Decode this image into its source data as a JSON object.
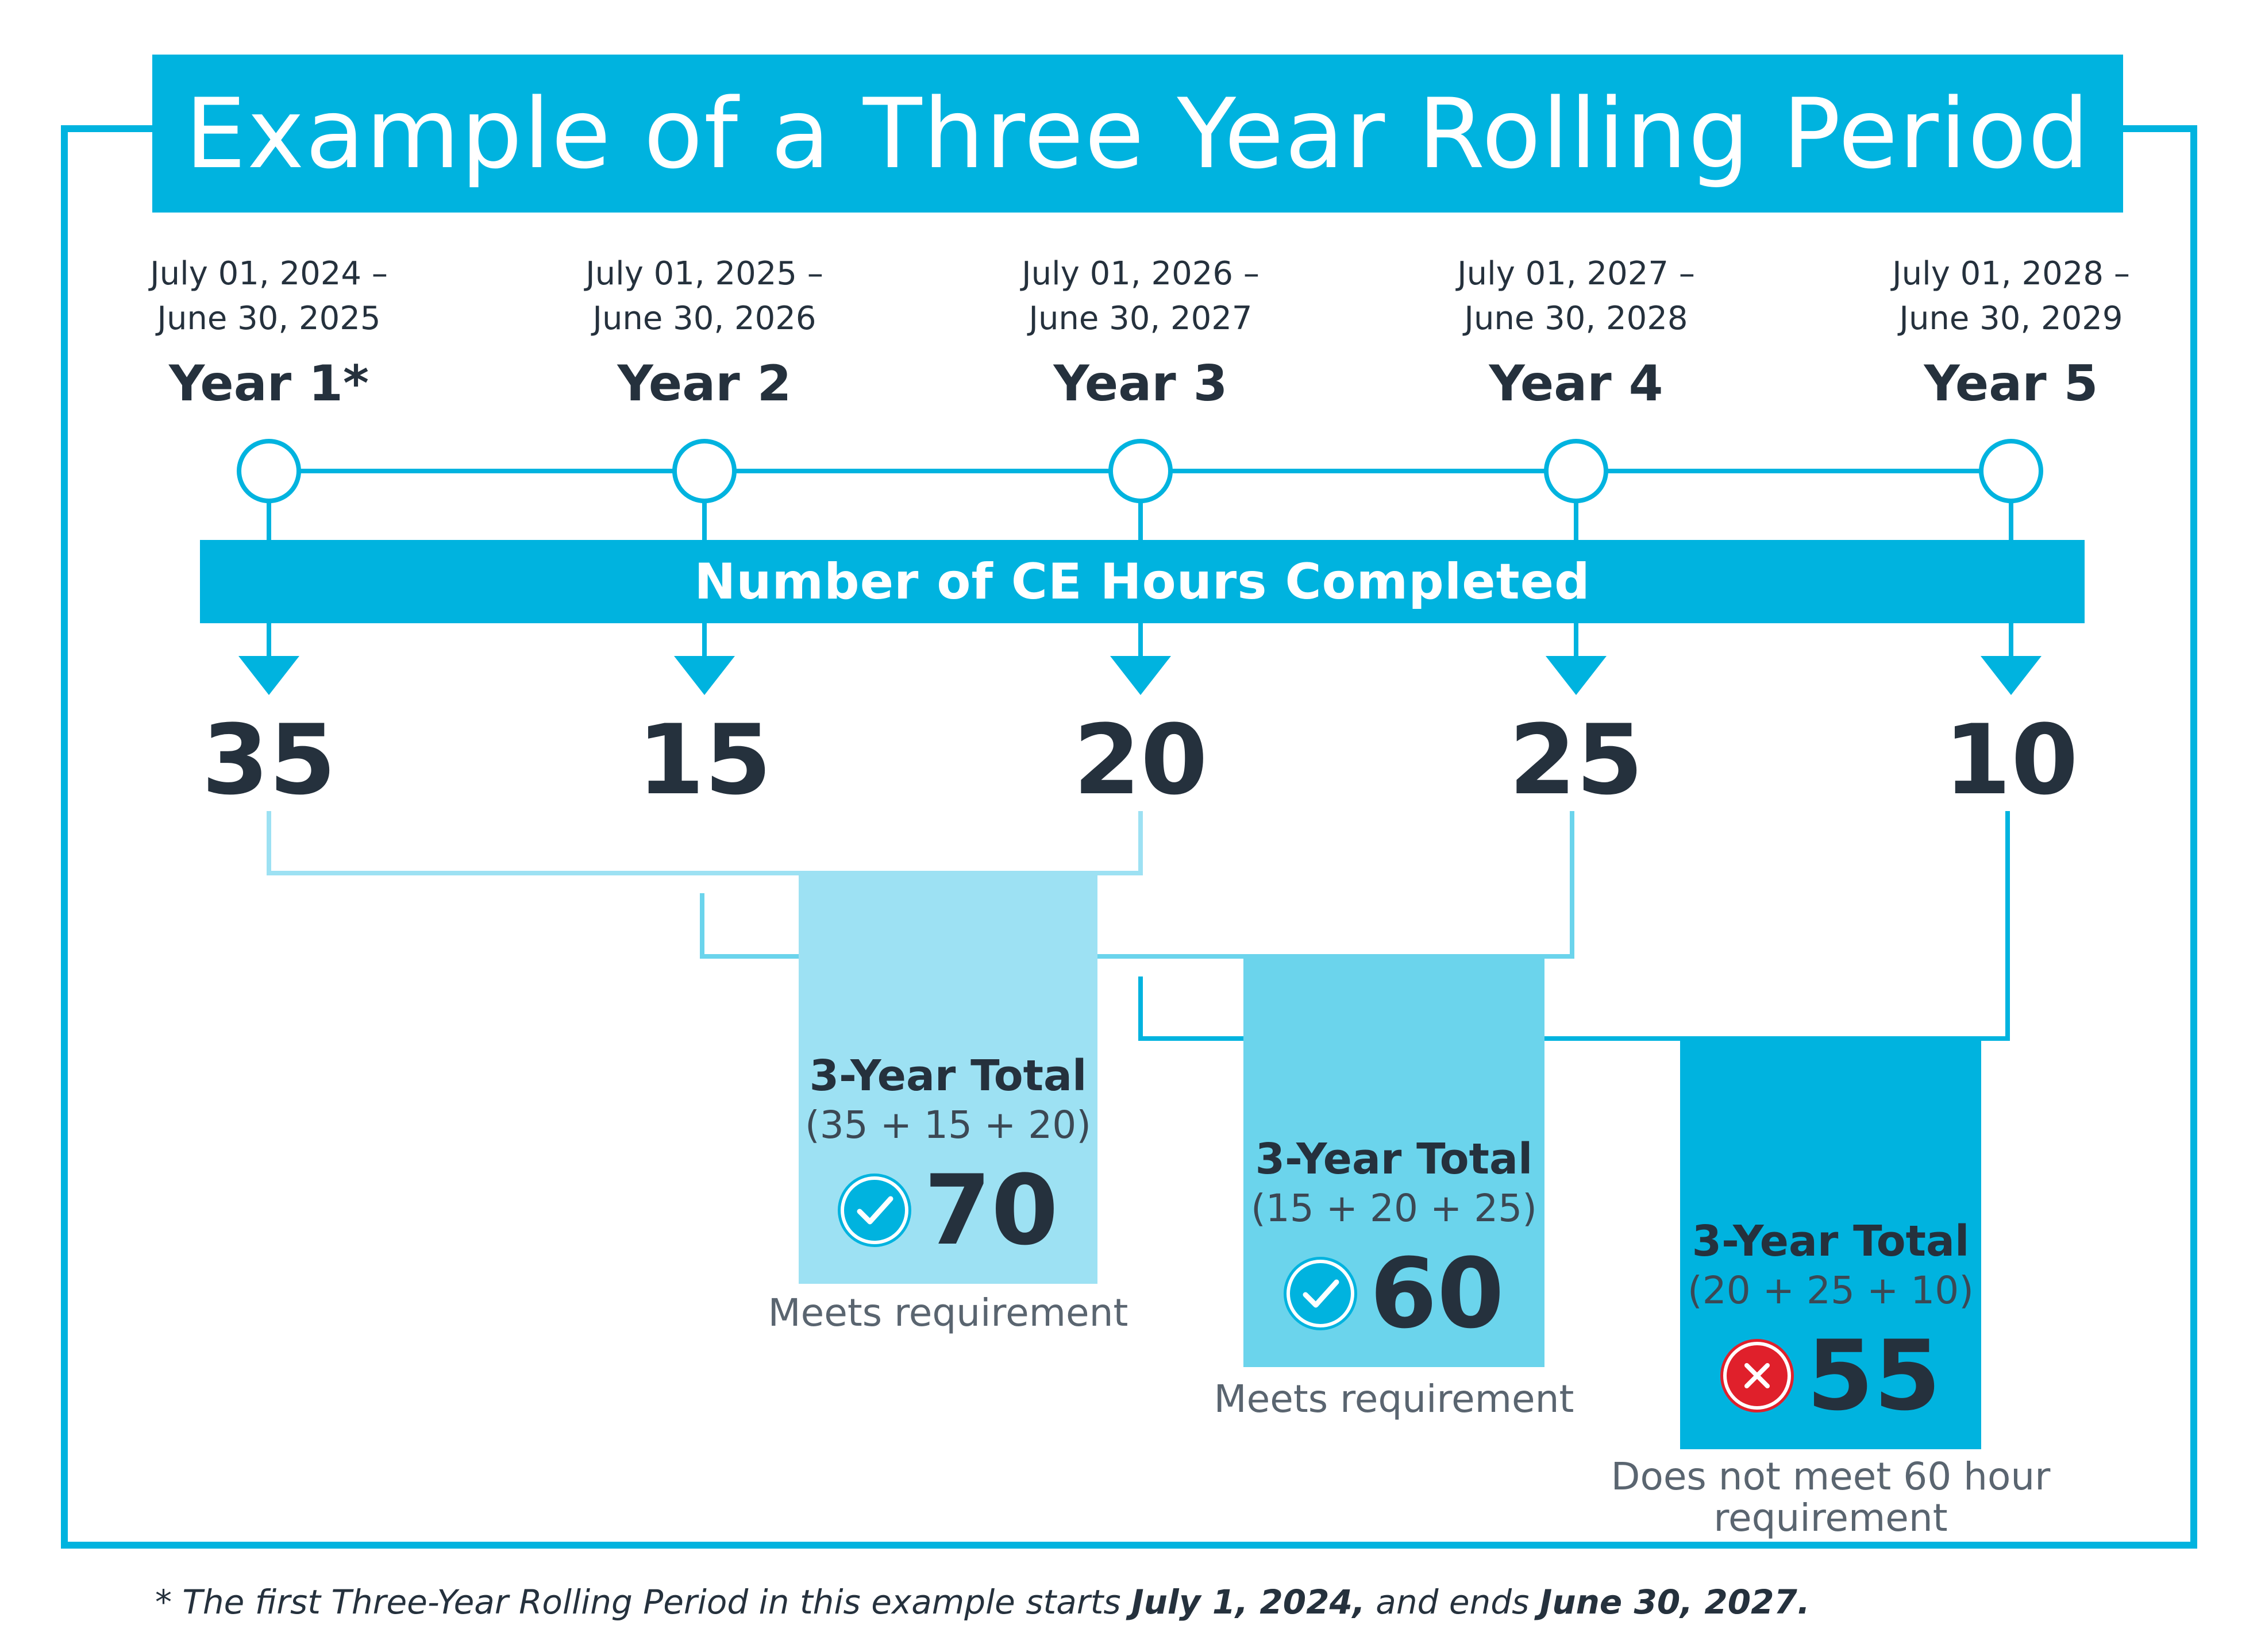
{
  "title": "Example of a Three Year Rolling Period",
  "years": [
    {
      "range_start": "July 01, 2024 –",
      "range_end": "June 30, 2025",
      "label": "Year 1*",
      "hours": "35"
    },
    {
      "range_start": "July 01, 2025 –",
      "range_end": "June 30, 2026",
      "label": "Year 2",
      "hours": "15"
    },
    {
      "range_start": "July 01, 2026 –",
      "range_end": "June 30, 2027",
      "label": "Year 3",
      "hours": "20"
    },
    {
      "range_start": "July 01, 2027 –",
      "range_end": "June 30, 2028",
      "label": "Year 4",
      "hours": "25"
    },
    {
      "range_start": "July 01, 2028 –",
      "range_end": "June 30, 2029",
      "label": "Year 5",
      "hours": "10"
    }
  ],
  "ce_bar_label": "Number of CE Hours Completed",
  "totals": [
    {
      "title": "3-Year Total",
      "formula": "(35 + 15 + 20)",
      "total": "70",
      "status": "check",
      "verdict": "Meets requirement"
    },
    {
      "title": "3-Year Total",
      "formula": "(15 + 20 + 25)",
      "total": "60",
      "status": "check",
      "verdict": "Meets requirement"
    },
    {
      "title": "3-Year Total",
      "formula": "(20 + 25 + 10)",
      "total": "55",
      "status": "x",
      "verdict_line1": "Does not meet 60 hour",
      "verdict_line2": "requirement"
    }
  ],
  "footnote": {
    "prefix": "* The first Three-Year Rolling Period in this example starts ",
    "start_date": "July 1, 2024,",
    "middle": " and ends ",
    "end_date": "June 30, 2027."
  },
  "colors": {
    "primary": "#00b3df",
    "light": "#9de1f3",
    "medium": "#6bd4ec",
    "text": "#25313d",
    "fail": "#e0202b"
  },
  "icons": {
    "check": "check-circle-icon",
    "fail": "x-circle-icon",
    "arrow": "down-arrow-icon"
  }
}
